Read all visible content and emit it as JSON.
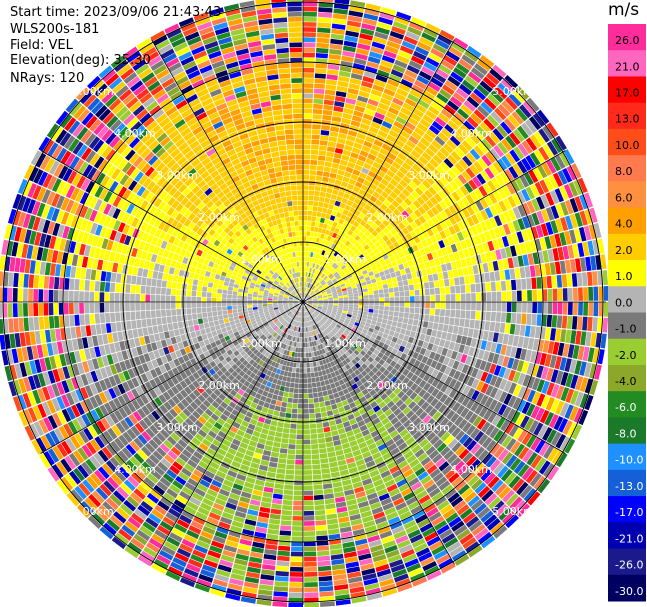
{
  "info": {
    "start_time": "Start time: 2023/09/06 21:43:43",
    "instrument": "WLS200s-181",
    "field": "Field: VEL",
    "elevation": "Elevation(deg): 35.30",
    "nrays": "NRays: 120"
  },
  "colorbar": {
    "unit": "m/s",
    "ticks": [
      "26.0",
      "21.0",
      "17.0",
      "13.0",
      "10.0",
      "8.0",
      "6.0",
      "4.0",
      "2.0",
      "1.0",
      "0.0",
      "-1.0",
      "-2.0",
      "-4.0",
      "-6.0",
      "-8.0",
      "-10.0",
      "-13.0",
      "-17.0",
      "-21.0",
      "-26.0",
      "-30.0"
    ],
    "colors": [
      "#ff2d9b",
      "#ff66c0",
      "#ff0000",
      "#ff2a1a",
      "#ff4d1a",
      "#ff7a4d",
      "#ff9040",
      "#ff9f00",
      "#ffcc00",
      "#ffff00",
      "#b4b4b4",
      "#7a7a7a",
      "#9acd32",
      "#8ca82a",
      "#228b22",
      "#1a7a2a",
      "#1e90ff",
      "#1560d8",
      "#0000ff",
      "#0000b0",
      "#1a1a8c",
      "#000060"
    ]
  },
  "chart_data": {
    "type": "heatmap",
    "projection": "polar PPI",
    "field": "VEL",
    "nrays": 120,
    "range_rings_km": [
      1.0,
      2.0,
      3.0,
      4.0,
      5.0
    ],
    "ring_labels": [
      "1.00km",
      "2.00km",
      "3.00km",
      "4.00km",
      "5.00km"
    ],
    "spokes_deg": [
      0,
      30,
      60,
      90,
      120,
      150,
      180,
      210,
      240,
      270,
      300,
      330
    ],
    "colorbar_range": [
      -30.0,
      26.0
    ],
    "pattern": "Near range: receding (positive, yellow/orange) toward north, approaching (negative, green) toward south; beyond about 4 km the data are noisy with random colors across the full scale."
  }
}
